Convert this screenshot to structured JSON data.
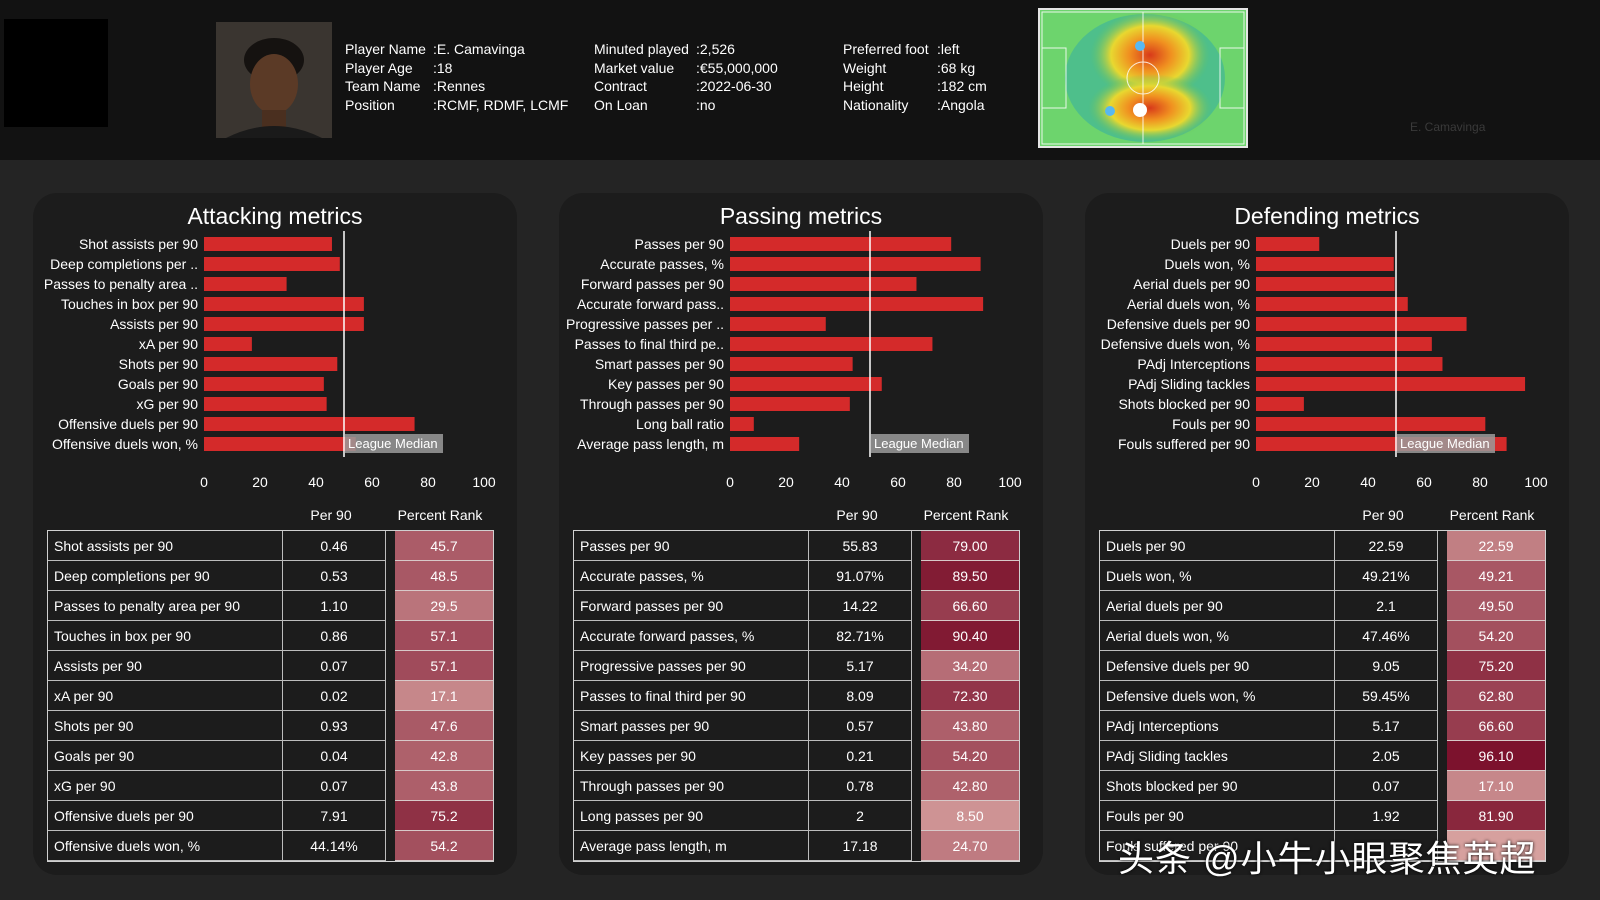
{
  "player": {
    "left": [
      {
        "key": "Player Name",
        "value": "E. Camavinga"
      },
      {
        "key": "Player Age",
        "value": "18"
      },
      {
        "key": "Team Name",
        "value": "Rennes"
      },
      {
        "key": "Position",
        "value": "RCMF, RDMF, LCMF"
      }
    ],
    "middle": [
      {
        "key": "Minuted played",
        "value": "2,526"
      },
      {
        "key": "Market value",
        "value": "€55,000,000"
      },
      {
        "key": "Contract",
        "value": "2022-06-30"
      },
      {
        "key": "On Loan",
        "value": "no"
      }
    ],
    "right": [
      {
        "key": "Preferred foot",
        "value": "left"
      },
      {
        "key": "Weight",
        "value": "68 kg"
      },
      {
        "key": "Height",
        "value": "182 cm"
      },
      {
        "key": "Nationality",
        "value": "Angola"
      }
    ],
    "heatmap_caption": "E. Camavinga"
  },
  "table_headers": {
    "per90": "Per 90",
    "rank": "Percent Rank"
  },
  "median_label": "League Median",
  "watermark": "头条 @小牛小眼聚焦英超",
  "colors": {
    "bar": "#d42a2a",
    "median_line": "#ffffff",
    "median_box": "#9a9a9a"
  },
  "chart_data": [
    {
      "type": "bar",
      "title": "Attacking metrics",
      "xlim": [
        0,
        100
      ],
      "xticks": [
        0,
        20,
        40,
        60,
        80,
        100
      ],
      "median": 50,
      "categories": [
        "Shot assists per 90",
        "Deep completions per ..",
        "Passes to penalty area ..",
        "Touches in box per 90",
        "Assists per 90",
        "xA per 90",
        "Shots per 90",
        "Goals per 90",
        "xG per 90",
        "Offensive duels per 90",
        "Offensive duels won, %"
      ],
      "values": [
        45.7,
        48.5,
        29.5,
        57.1,
        57.1,
        17.1,
        47.6,
        42.8,
        43.8,
        75.2,
        54.2
      ],
      "table": [
        {
          "metric": "Shot assists per 90",
          "per90": "0.46",
          "rank": "45.7"
        },
        {
          "metric": "Deep completions per 90",
          "per90": "0.53",
          "rank": "48.5"
        },
        {
          "metric": "Passes to penalty area per 90",
          "per90": "1.10",
          "rank": "29.5"
        },
        {
          "metric": "Touches in box per 90",
          "per90": "0.86",
          "rank": "57.1"
        },
        {
          "metric": "Assists per 90",
          "per90": "0.07",
          "rank": "57.1"
        },
        {
          "metric": "xA per 90",
          "per90": "0.02",
          "rank": "17.1"
        },
        {
          "metric": "Shots per 90",
          "per90": "0.93",
          "rank": "47.6"
        },
        {
          "metric": "Goals per 90",
          "per90": "0.04",
          "rank": "42.8"
        },
        {
          "metric": "xG per 90",
          "per90": "0.07",
          "rank": "43.8"
        },
        {
          "metric": "Offensive duels per 90",
          "per90": "7.91",
          "rank": "75.2"
        },
        {
          "metric": "Offensive duels won, %",
          "per90": "44.14%",
          "rank": "54.2"
        }
      ]
    },
    {
      "type": "bar",
      "title": "Passing metrics",
      "xlim": [
        0,
        100
      ],
      "xticks": [
        0,
        20,
        40,
        60,
        80,
        100
      ],
      "median": 50,
      "categories": [
        "Passes per 90",
        "Accurate passes, %",
        "Forward passes per 90",
        "Accurate forward pass..",
        "Progressive passes per ..",
        "Passes to final third pe..",
        "Smart passes per 90",
        "Key passes per 90",
        "Through passes per 90",
        "Long ball ratio",
        "Average pass length, m"
      ],
      "values": [
        79.0,
        89.5,
        66.6,
        90.4,
        34.2,
        72.3,
        43.8,
        54.2,
        42.8,
        8.5,
        24.7
      ],
      "table": [
        {
          "metric": "Passes per 90",
          "per90": "55.83",
          "rank": "79.00"
        },
        {
          "metric": "Accurate passes, %",
          "per90": "91.07%",
          "rank": "89.50"
        },
        {
          "metric": "Forward passes per 90",
          "per90": "14.22",
          "rank": "66.60"
        },
        {
          "metric": "Accurate forward passes, %",
          "per90": "82.71%",
          "rank": "90.40"
        },
        {
          "metric": "Progressive passes per 90",
          "per90": "5.17",
          "rank": "34.20"
        },
        {
          "metric": "Passes to final third per 90",
          "per90": "8.09",
          "rank": "72.30"
        },
        {
          "metric": "Smart passes per 90",
          "per90": "0.57",
          "rank": "43.80"
        },
        {
          "metric": "Key passes per 90",
          "per90": "0.21",
          "rank": "54.20"
        },
        {
          "metric": "Through passes per 90",
          "per90": "0.78",
          "rank": "42.80"
        },
        {
          "metric": "Long passes per 90",
          "per90": "2",
          "rank": "8.50"
        },
        {
          "metric": "Average pass length, m",
          "per90": "17.18",
          "rank": "24.70"
        }
      ]
    },
    {
      "type": "bar",
      "title": "Defending metrics",
      "xlim": [
        0,
        100
      ],
      "xticks": [
        0,
        20,
        40,
        60,
        80,
        100
      ],
      "median": 50,
      "categories": [
        "Duels per 90",
        "Duels won, %",
        "Aerial duels per 90",
        "Aerial duels won, %",
        "Defensive duels per 90",
        "Defensive duels won, %",
        "PAdj Interceptions",
        "PAdj Sliding tackles",
        "Shots blocked per 90",
        "Fouls per 90",
        "Fouls suffered per 90"
      ],
      "values": [
        22.59,
        49.21,
        49.5,
        54.2,
        75.2,
        62.8,
        66.6,
        96.1,
        17.1,
        81.9,
        89.5
      ],
      "table": [
        {
          "metric": "Duels per 90",
          "per90": "22.59",
          "rank": "22.59"
        },
        {
          "metric": "Duels won, %",
          "per90": "49.21%",
          "rank": "49.21"
        },
        {
          "metric": "Aerial duels per 90",
          "per90": "2.1",
          "rank": "49.50"
        },
        {
          "metric": "Aerial duels won, %",
          "per90": "47.46%",
          "rank": "54.20"
        },
        {
          "metric": "Defensive duels per 90",
          "per90": "9.05",
          "rank": "75.20"
        },
        {
          "metric": "Defensive duels won, %",
          "per90": "59.45%",
          "rank": "62.80"
        },
        {
          "metric": "PAdj Interceptions",
          "per90": "5.17",
          "rank": "66.60"
        },
        {
          "metric": "PAdj Sliding tackles",
          "per90": "2.05",
          "rank": "96.10"
        },
        {
          "metric": "Shots blocked per 90",
          "per90": "0.07",
          "rank": "17.10"
        },
        {
          "metric": "Fouls per 90",
          "per90": "1.92",
          "rank": "81.90"
        },
        {
          "metric": "Fouls suffered per 90",
          "per90": "",
          "rank": ""
        }
      ]
    }
  ]
}
